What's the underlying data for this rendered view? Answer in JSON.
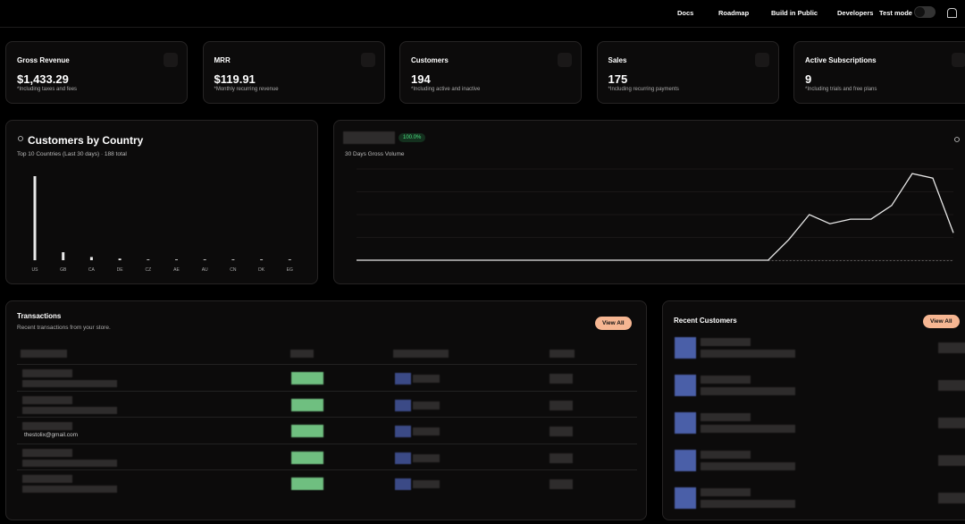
{
  "nav": {
    "items": [
      "Docs",
      "Roadmap",
      "Build in Public",
      "Developers"
    ],
    "test_mode": "Test mode"
  },
  "stats": [
    {
      "title": "Gross Revenue",
      "value": "$1,433.29",
      "note": "*Including taxes and fees"
    },
    {
      "title": "MRR",
      "value": "$119.91",
      "note": "*Monthly recurring revenue"
    },
    {
      "title": "Customers",
      "value": "194",
      "note": "*Including active and inactive"
    },
    {
      "title": "Sales",
      "value": "175",
      "note": "*Including recurring payments"
    },
    {
      "title": "Active Subscriptions",
      "value": "9",
      "note": "*Including trials and free plans"
    }
  ],
  "country_chart": {
    "type": "bar",
    "title": "Customers by Country",
    "subtitle": "Top 10 Countries (Last 30 days) · 188 total",
    "categories": [
      "US",
      "GB",
      "CA",
      "DE",
      "CZ",
      "AE",
      "AU",
      "CN",
      "DK",
      "EG"
    ],
    "values": [
      158,
      15,
      6,
      3,
      1,
      1,
      1,
      1,
      1,
      1
    ],
    "color": "#e8e8e8"
  },
  "volume_chart": {
    "type": "line",
    "badge": "100.0%",
    "subtitle": "30 Days Gross Volume",
    "values": [
      0,
      0,
      0,
      0,
      0,
      0,
      0,
      0,
      0,
      0,
      0,
      0,
      0,
      0,
      0,
      0,
      0,
      0,
      0,
      0,
      0,
      0.9,
      2.0,
      1.6,
      1.8,
      1.8,
      2.4,
      3.8,
      3.6,
      1.2
    ],
    "ylim": [
      0,
      4
    ],
    "yticks": [
      0,
      1,
      2,
      3,
      4
    ],
    "color": "#e8e8e8",
    "grid": true
  },
  "transactions": {
    "title": "Transactions",
    "subtitle": "Recent transactions from your store.",
    "button": "View All",
    "email": "thestolix@gmail.com"
  },
  "recent_customers": {
    "title": "Recent Customers",
    "button": "View All"
  }
}
